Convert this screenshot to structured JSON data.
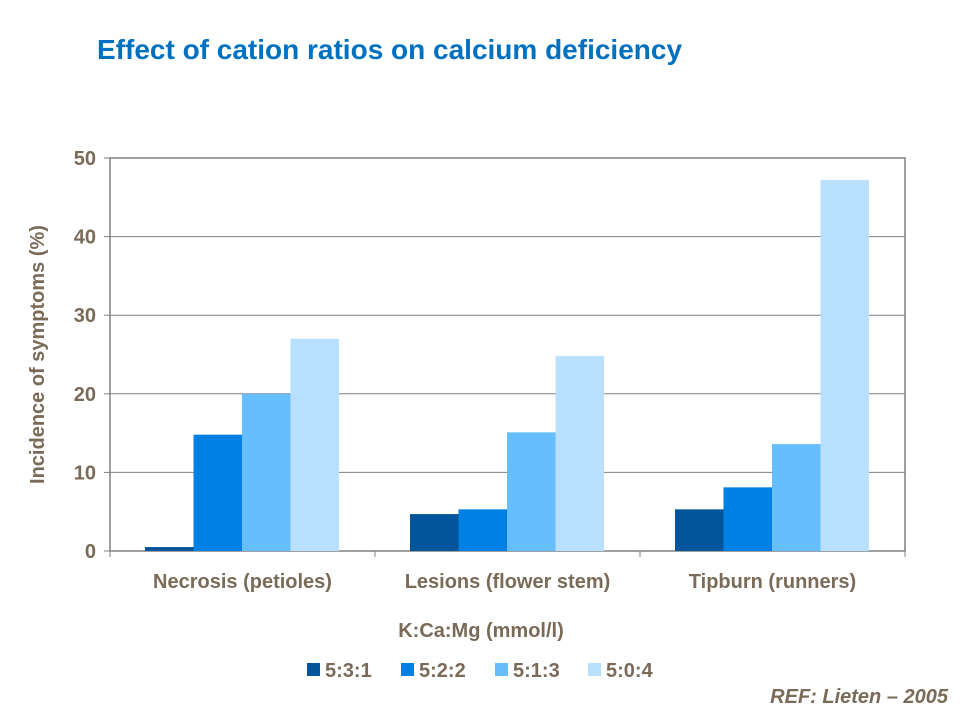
{
  "chart_data": {
    "type": "bar",
    "title": "Effect of cation ratios on calcium deficiency",
    "xlabel": "K:Ca:Mg (mmol/l)",
    "ylabel": "Incidence of symptoms (%)",
    "ylim": [
      0,
      50
    ],
    "yticks": [
      0,
      10,
      20,
      30,
      40,
      50
    ],
    "grid": true,
    "legend": "bottom",
    "categories": [
      "Necrosis (petioles)",
      "Lesions (flower stem)",
      "Tipburn (runners)"
    ],
    "series": [
      {
        "name": "5:3:1",
        "color": "#00559B",
        "values": [
          0.5,
          4.7,
          5.3
        ]
      },
      {
        "name": "5:2:2",
        "color": "#0080E2",
        "values": [
          14.8,
          5.3,
          8.1
        ]
      },
      {
        "name": "5:1:3",
        "color": "#66BEFF",
        "values": [
          20.0,
          15.1,
          13.6
        ]
      },
      {
        "name": "5:0:4",
        "color": "#B9E0FF",
        "values": [
          27.0,
          24.8,
          47.2
        ]
      }
    ]
  },
  "reference": "REF: Lieten – 2005"
}
